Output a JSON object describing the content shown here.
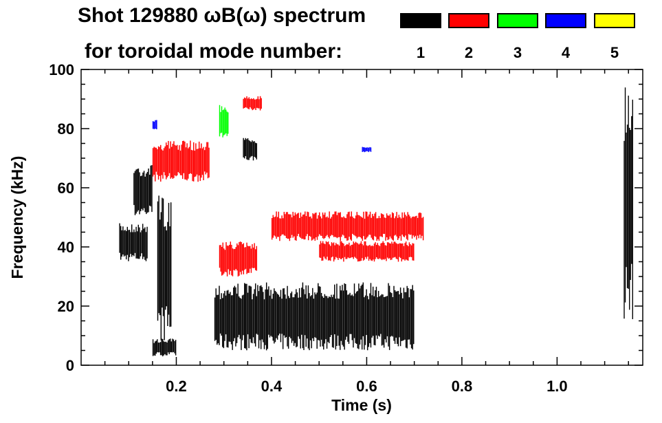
{
  "chart_data": {
    "type": "heatmap",
    "title": "Shot 129880 ωB(ω) spectrum",
    "subtitle": "for toroidal mode number:",
    "xlabel": "Time (s)",
    "ylabel": "Frequency (kHz)",
    "xlim": [
      0.0,
      1.18
    ],
    "ylim": [
      0,
      100
    ],
    "x_ticks": [
      "0.2",
      "0.4",
      "0.6",
      "0.8",
      "1.0"
    ],
    "x_tick_values": [
      0.2,
      0.4,
      0.6,
      0.8,
      1.0
    ],
    "y_ticks": [
      "0",
      "20",
      "40",
      "60",
      "80",
      "100"
    ],
    "y_tick_values": [
      0,
      20,
      40,
      60,
      80,
      100
    ],
    "grid": false,
    "legend": {
      "placement": "top-right",
      "entries": [
        {
          "label": "1",
          "color": "#000000"
        },
        {
          "label": "2",
          "color": "#ff0000"
        },
        {
          "label": "3",
          "color": "#00ff00"
        },
        {
          "label": "4",
          "color": "#0000ff"
        },
        {
          "label": "5",
          "color": "#ffff00"
        }
      ]
    },
    "regions": [
      {
        "mode": 1,
        "t": [
          0.08,
          0.14
        ],
        "f": [
          35,
          48
        ]
      },
      {
        "mode": 1,
        "t": [
          0.11,
          0.15
        ],
        "f": [
          50,
          68
        ]
      },
      {
        "mode": 1,
        "t": [
          0.15,
          0.2
        ],
        "f": [
          3,
          9
        ]
      },
      {
        "mode": 1,
        "t": [
          0.16,
          0.19
        ],
        "f": [
          8,
          58
        ]
      },
      {
        "mode": 1,
        "t": [
          0.28,
          0.7
        ],
        "f": [
          5,
          28
        ]
      },
      {
        "mode": 1,
        "t": [
          0.34,
          0.37
        ],
        "f": [
          69,
          77
        ]
      },
      {
        "mode": 1,
        "t": [
          1.14,
          1.16
        ],
        "f": [
          15,
          96
        ]
      },
      {
        "mode": 2,
        "t": [
          0.15,
          0.27
        ],
        "f": [
          62,
          76
        ]
      },
      {
        "mode": 2,
        "t": [
          0.29,
          0.37
        ],
        "f": [
          30,
          42
        ]
      },
      {
        "mode": 2,
        "t": [
          0.4,
          0.72
        ],
        "f": [
          42,
          52
        ]
      },
      {
        "mode": 2,
        "t": [
          0.5,
          0.7
        ],
        "f": [
          35,
          42
        ]
      },
      {
        "mode": 2,
        "t": [
          0.34,
          0.38
        ],
        "f": [
          86,
          91
        ]
      },
      {
        "mode": 3,
        "t": [
          0.29,
          0.31
        ],
        "f": [
          77,
          88
        ]
      },
      {
        "mode": 4,
        "t": [
          0.15,
          0.16
        ],
        "f": [
          79,
          83
        ]
      },
      {
        "mode": 4,
        "t": [
          0.59,
          0.61
        ],
        "f": [
          72,
          74
        ]
      }
    ]
  }
}
